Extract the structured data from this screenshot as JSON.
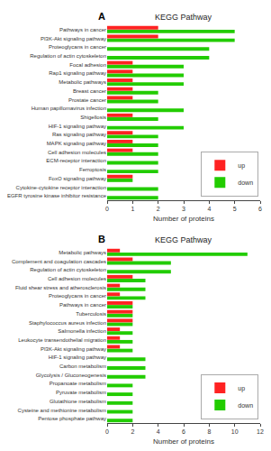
{
  "chart_data": [
    {
      "type": "bar",
      "orientation": "horizontal",
      "title": "KEGG Pathway",
      "annotations": [
        "A"
      ],
      "xlabel": "Number of proteins",
      "xlim": [
        0,
        6
      ],
      "xticks": [
        0,
        1,
        2,
        3,
        4,
        5,
        6
      ],
      "categories": [
        "EGFR tyrosine kinase inhibitor resistance",
        "Cytokine-cytokine receptor interaction",
        "FoxO signaling pathway",
        "Ferroptosis",
        "ECM-receptor interaction",
        "Cell adhesion molecules",
        "MAPK signaling pathway",
        "Ras signaling pathway",
        "HIF-1 signaling pathway",
        "Shigellosis",
        "Human papillomavirus infection",
        "Prostate cancer",
        "Breast cancer",
        "Metabolic pathways",
        "Rap1 signaling pathway",
        "Focal adhesion",
        "Regulation of actin cytoskeleton",
        "Proteoglycans in cancer",
        "PI3K-Akt signaling pathway",
        "Pathways in cancer"
      ],
      "series": [
        {
          "name": "up",
          "color": "#ff2222",
          "values": [
            0,
            0,
            1,
            0,
            0,
            1,
            1,
            1,
            0,
            1,
            0,
            1,
            1,
            1,
            1,
            1,
            0,
            0,
            2,
            2
          ]
        },
        {
          "name": "down",
          "color": "#22cc00",
          "values": [
            2,
            2,
            1,
            2,
            2,
            2,
            2,
            2,
            3,
            2,
            3,
            2,
            2,
            3,
            3,
            3,
            4,
            4,
            5,
            5
          ]
        }
      ],
      "legend": "lower right",
      "grid": false
    },
    {
      "type": "bar",
      "orientation": "horizontal",
      "title": "KEGG Pathway",
      "annotations": [
        "B"
      ],
      "xlabel": "Number of proteins",
      "xlim": [
        0,
        12
      ],
      "xticks": [
        0,
        2,
        4,
        6,
        8,
        10,
        12
      ],
      "categories": [
        "Pentose phosphate pathway",
        "Cysteine and methionine metabolism",
        "Glutathione metabolism",
        "Pyruvate metabolism",
        "Propanoate metabolism",
        "Glycolysis / Gluconeogenesis",
        "Carbon metabolism",
        "HIF-1 signaling pathway",
        "PI3K-Akt signaling pathway",
        "Leukocyte transendothelial migration",
        "Salmonella infection",
        "Staphylococcus aureus infection",
        "Tuberculosis",
        "Pathways in cancer",
        "Proteoglycans in cancer",
        "Fluid shear stress and atherosclerosis",
        "Cell adhesion molecules",
        "Regulation of actin cytoskeleton",
        "Complement and coagulation cascades",
        "Metabolic pathways"
      ],
      "series": [
        {
          "name": "up",
          "color": "#ff2222",
          "values": [
            0,
            0,
            0,
            0,
            0,
            0,
            0,
            0,
            1,
            1,
            1,
            2,
            2,
            2,
            1,
            1,
            2,
            0,
            2,
            1
          ]
        },
        {
          "name": "down",
          "color": "#22cc00",
          "values": [
            2,
            2,
            2,
            2,
            2,
            3,
            3,
            3,
            2,
            2,
            2,
            2,
            2,
            2,
            3,
            3,
            3,
            5,
            5,
            11
          ]
        }
      ],
      "legend": "lower right",
      "grid": false
    }
  ]
}
